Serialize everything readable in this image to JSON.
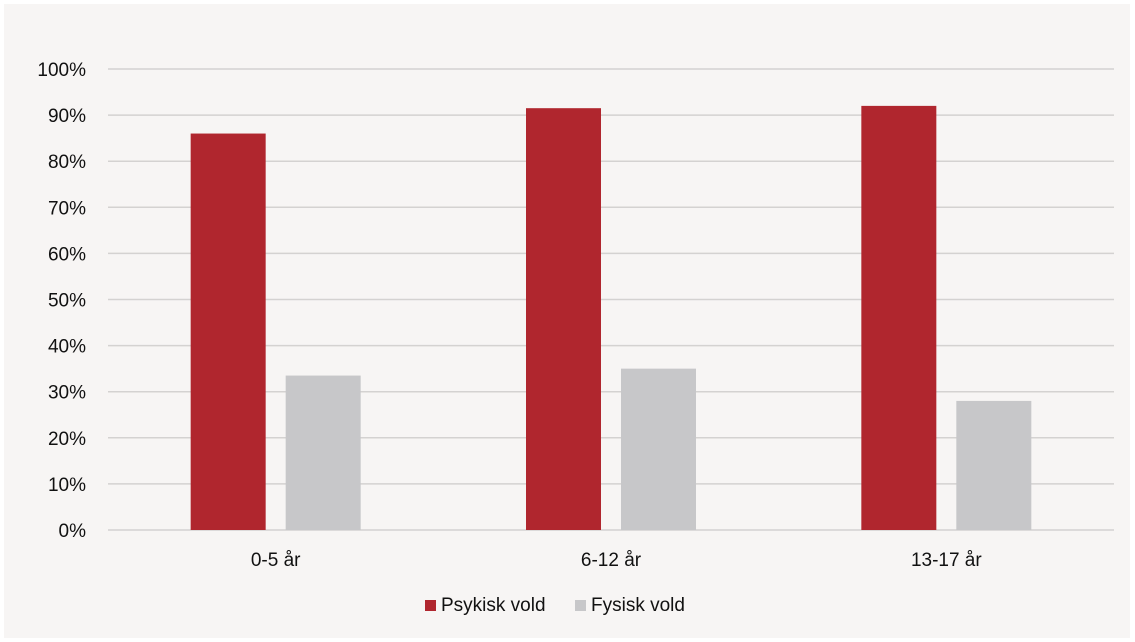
{
  "chart_data": {
    "type": "bar",
    "categories": [
      "0-5 år",
      "6-12 år",
      "13-17 år"
    ],
    "series": [
      {
        "name": "Psykisk vold",
        "values": [
          86,
          91.5,
          92
        ],
        "color": "#b0262e"
      },
      {
        "name": "Fysisk vold",
        "values": [
          33.5,
          35,
          28
        ],
        "color": "#c7c7c9"
      }
    ],
    "y_ticks": [
      "0%",
      "10%",
      "20%",
      "30%",
      "40%",
      "50%",
      "60%",
      "70%",
      "80%",
      "90%",
      "100%"
    ],
    "ylim": [
      0,
      100
    ],
    "y_unit": "%",
    "grid": true,
    "legend_position": "bottom"
  }
}
